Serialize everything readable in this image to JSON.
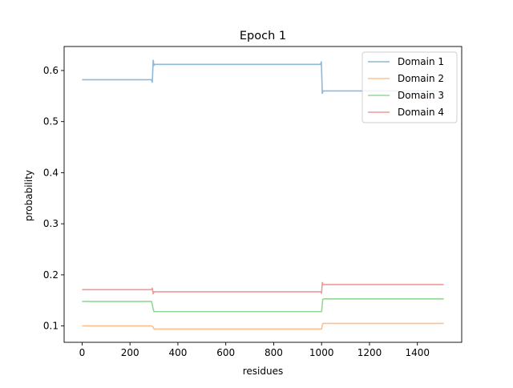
{
  "chart_data": {
    "type": "line",
    "title": "Epoch 1",
    "xlabel": "residues",
    "ylabel": "probability",
    "xlim": [
      -75,
      1585
    ],
    "ylim": [
      0.068,
      0.647
    ],
    "x_ticks": [
      0,
      200,
      400,
      600,
      800,
      1000,
      1200,
      1400
    ],
    "y_ticks": [
      0.1,
      0.2,
      0.3,
      0.4,
      0.5,
      0.6
    ],
    "grid": false,
    "legend_position": "top-right",
    "series": [
      {
        "name": "Domain 1",
        "color": "#8fb8d6",
        "x": [
          0,
          290,
          293,
          297,
          300,
          303,
          310,
          996,
          999,
          1003,
          1006,
          1010,
          1020,
          1510
        ],
        "y": [
          0.582,
          0.582,
          0.577,
          0.62,
          0.61,
          0.612,
          0.612,
          0.612,
          0.617,
          0.555,
          0.56,
          0.56,
          0.56,
          0.56
        ]
      },
      {
        "name": "Domain 2",
        "color": "#ffc08e",
        "x": [
          0,
          290,
          296,
          300,
          310,
          1000,
          1005,
          1010,
          1510
        ],
        "y": [
          0.1,
          0.1,
          0.098,
          0.094,
          0.094,
          0.094,
          0.105,
          0.105,
          0.105
        ]
      },
      {
        "name": "Domain 3",
        "color": "#97d597",
        "x": [
          0,
          290,
          296,
          300,
          310,
          1000,
          1005,
          1010,
          1510
        ],
        "y": [
          0.148,
          0.148,
          0.135,
          0.128,
          0.128,
          0.128,
          0.152,
          0.153,
          0.153
        ]
      },
      {
        "name": "Domain 4",
        "color": "#ee9a98",
        "x": [
          0,
          290,
          293,
          297,
          300,
          310,
          996,
          1000,
          1003,
          1006,
          1010,
          1510
        ],
        "y": [
          0.171,
          0.171,
          0.174,
          0.163,
          0.167,
          0.167,
          0.167,
          0.164,
          0.185,
          0.181,
          0.181,
          0.181
        ]
      }
    ]
  }
}
